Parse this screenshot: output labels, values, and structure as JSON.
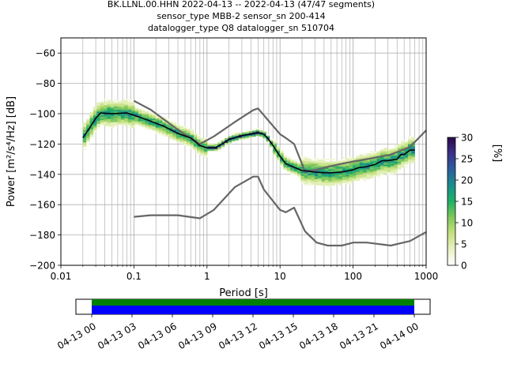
{
  "header": {
    "line1": "BK.LLNL.00.HHN   2022-04-13 -- 2022-04-13  (47/47 segments)",
    "line2": "sensor_type MBB-2 sensor_sn 200-414",
    "line3": "datalogger_type Q8 datalogger_sn 510704"
  },
  "chart_data": [
    {
      "type": "heatmap",
      "xlabel": "Period [s]",
      "ylabel": "Power [m²/s⁴/Hz] [dB]",
      "xscale": "log",
      "xlim": [
        0.01,
        1000
      ],
      "ylim": [
        -200,
        -50
      ],
      "x_ticks": [
        {
          "v": 0.01,
          "label": "0.01"
        },
        {
          "v": 0.1,
          "label": "0.1"
        },
        {
          "v": 1,
          "label": "1"
        },
        {
          "v": 10,
          "label": "10"
        },
        {
          "v": 100,
          "label": "100"
        },
        {
          "v": 1000,
          "label": "1000"
        }
      ],
      "y_ticks": [
        -60,
        -80,
        -100,
        -120,
        -140,
        -160,
        -180,
        -200
      ],
      "grid": true,
      "series": [
        {
          "name": "",
          "role": "noise-model-high",
          "color": "#666666",
          "x": [
            0.1,
            0.17,
            0.4,
            0.8,
            1.24,
            2.4,
            4.3,
            5,
            6,
            10,
            12,
            15.6,
            21.9,
            31.6,
            45,
            70,
            101,
            154,
            328,
            600,
            1000
          ],
          "y": [
            -91.5,
            -97.4,
            -110.5,
            -120,
            -115,
            -105.5,
            -97.6,
            -96.5,
            -101,
            -113.5,
            -116,
            -120,
            -138,
            -137,
            -135,
            -133,
            -131.5,
            -130,
            -127,
            -122,
            -111
          ]
        },
        {
          "name": "",
          "role": "noise-model-low",
          "color": "#666666",
          "x": [
            0.1,
            0.17,
            0.4,
            0.8,
            1.24,
            2.4,
            4.3,
            5,
            6,
            10,
            12,
            15.6,
            21.9,
            31.6,
            45,
            70,
            101,
            154,
            328,
            600,
            1000
          ],
          "y": [
            -168,
            -167,
            -167,
            -169,
            -163.5,
            -148.5,
            -141.5,
            -141.5,
            -150,
            -163.5,
            -165,
            -162,
            -177.5,
            -185,
            -187,
            -187,
            -185,
            -185,
            -187,
            -184,
            -178
          ]
        },
        {
          "name": "",
          "role": "mode",
          "color": "#000000",
          "x": [
            0.02,
            0.025,
            0.03,
            0.035,
            0.05,
            0.08,
            0.1,
            0.15,
            0.25,
            0.4,
            0.6,
            0.8,
            1.0,
            1.3,
            1.6,
            2,
            3,
            4,
            5,
            6,
            7,
            8,
            10,
            12,
            15,
            20,
            25,
            30,
            40,
            50,
            70,
            100,
            120,
            150,
            200,
            250,
            300,
            400,
            450,
            500,
            600,
            700
          ],
          "y": [
            -116,
            -109,
            -103,
            -99.5,
            -100,
            -99.5,
            -101,
            -104,
            -108,
            -113,
            -116,
            -121,
            -122.5,
            -122.5,
            -120,
            -117,
            -114.5,
            -113.5,
            -112.5,
            -113.5,
            -117,
            -121,
            -128,
            -133,
            -135,
            -137.5,
            -138,
            -138.5,
            -139,
            -139,
            -138.5,
            -137,
            -135.5,
            -135,
            -133.5,
            -131,
            -131,
            -130,
            -127,
            -127,
            -124,
            -124
          ]
        }
      ],
      "histogram_colormap": "white-green-blue-purple",
      "colorbar": {
        "label": "[%]",
        "min": 0,
        "max": 30,
        "ticks": [
          0,
          5,
          10,
          15,
          20,
          25,
          30
        ]
      }
    },
    {
      "type": "timeline",
      "x_tick_labels": [
        "04-13 00",
        "04-13 03",
        "04-13 06",
        "04-13 09",
        "04-13 12",
        "04-13 15",
        "04-13 18",
        "04-13 21",
        "04-14 00"
      ],
      "bars": [
        {
          "role": "data",
          "color": "#008000"
        },
        {
          "role": "segments",
          "color": "#0000ff"
        }
      ]
    }
  ]
}
